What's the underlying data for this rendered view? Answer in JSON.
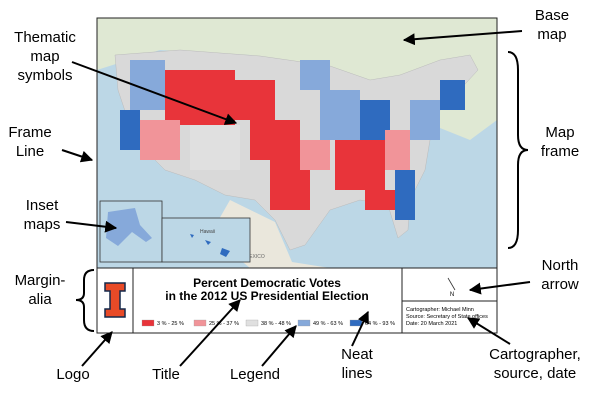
{
  "annotations": [
    {
      "lines": [
        "Base",
        "map"
      ]
    },
    {
      "lines": [
        "Thematic",
        "map",
        "symbols"
      ]
    },
    {
      "lines": [
        "Frame",
        "Line"
      ]
    },
    {
      "lines": [
        "Map",
        "frame"
      ]
    },
    {
      "lines": [
        "Inset",
        "maps"
      ]
    },
    {
      "lines": [
        "Margin-",
        "alia"
      ]
    },
    {
      "lines": [
        "North",
        "arrow"
      ]
    },
    {
      "lines": [
        "Logo"
      ]
    },
    {
      "lines": [
        "Title"
      ]
    },
    {
      "lines": [
        "Legend"
      ]
    },
    {
      "lines": [
        "Neat",
        "lines"
      ]
    },
    {
      "lines": [
        "Cartographer,",
        "source, date"
      ]
    }
  ],
  "map": {
    "title_lines": [
      "Percent Democratic Votes",
      "in the 2012 US Presidential Election"
    ],
    "legend": [
      {
        "label": "3 % - 25 %",
        "color": "#e8343a"
      },
      {
        "label": "25 % - 37 %",
        "color": "#f19499"
      },
      {
        "label": "38 % - 48 %",
        "color": "#e0e0e0"
      },
      {
        "label": "49 % - 63 %",
        "color": "#86a9da"
      },
      {
        "label": "64 % - 93 %",
        "color": "#2f6bbf"
      }
    ],
    "credits": [
      "Cartographer: Michael Minn",
      "Source: Secretary of State offices",
      "Date: 20 March 2021"
    ],
    "north_label": "N",
    "inset_label": "Hawaii",
    "country_label": "MEXICO"
  }
}
